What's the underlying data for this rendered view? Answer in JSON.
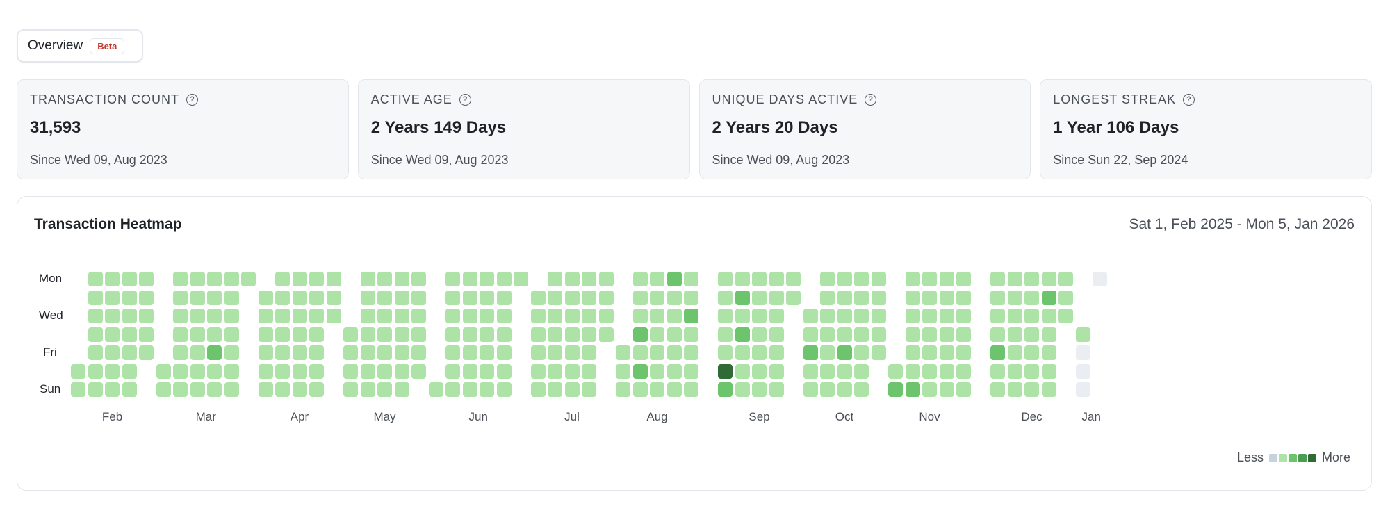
{
  "tab": {
    "label": "Overview",
    "badge": "Beta"
  },
  "stats": [
    {
      "label": "TRANSACTION COUNT",
      "value": "31,593",
      "sub": "Since Wed 09, Aug 2023"
    },
    {
      "label": "ACTIVE AGE",
      "value": "2 Years 149 Days",
      "sub": "Since Wed 09, Aug 2023"
    },
    {
      "label": "UNIQUE DAYS ACTIVE",
      "value": "2 Years 20 Days",
      "sub": "Since Wed 09, Aug 2023"
    },
    {
      "label": "LONGEST STREAK",
      "value": "1 Year 106 Days",
      "sub": "Since Sun 22, Sep 2024"
    }
  ],
  "heatmap": {
    "title": "Transaction Heatmap",
    "range": "Sat 1, Feb 2025 - Mon 5, Jan 2026",
    "day_labels": [
      "Mon",
      "Wed",
      "Fri",
      "Sun"
    ],
    "months": [
      "Feb",
      "Mar",
      "Apr",
      "May",
      "Jun",
      "Jul",
      "Aug",
      "Sep",
      "Oct",
      "Nov",
      "Dec",
      "Jan"
    ],
    "legend_less": "Less",
    "legend_more": "More",
    "colors": [
      "#eaeef2",
      "#ade3a6",
      "#6cc46d",
      "#4a9e52",
      "#2f6b34"
    ],
    "legend_colors": [
      "#c5d3e0",
      "#ade3a6",
      "#6cc46d",
      "#4a9e52",
      "#2f6b34"
    ],
    "start_weekday_index": 5,
    "total_days": 339,
    "high_days": [
      {
        "month": 1,
        "day": 21,
        "level": 2
      },
      {
        "month": 6,
        "day": 7,
        "level": 2
      },
      {
        "month": 6,
        "day": 9,
        "level": 2
      },
      {
        "month": 6,
        "day": 18,
        "level": 2
      },
      {
        "month": 6,
        "day": 27,
        "level": 2
      },
      {
        "month": 7,
        "day": 6,
        "level": 4
      },
      {
        "month": 7,
        "day": 7,
        "level": 2
      },
      {
        "month": 7,
        "day": 9,
        "level": 2
      },
      {
        "month": 7,
        "day": 11,
        "level": 2
      },
      {
        "month": 8,
        "day": 3,
        "level": 2
      },
      {
        "month": 8,
        "day": 17,
        "level": 2
      },
      {
        "month": 9,
        "day": 2,
        "level": 2
      },
      {
        "month": 9,
        "day": 9,
        "level": 2
      },
      {
        "month": 10,
        "day": 5,
        "level": 2
      },
      {
        "month": 10,
        "day": 23,
        "level": 2
      },
      {
        "month": 11,
        "day": 22,
        "level": 2
      },
      {
        "month": 11,
        "day": 28,
        "level": 3
      }
    ]
  }
}
